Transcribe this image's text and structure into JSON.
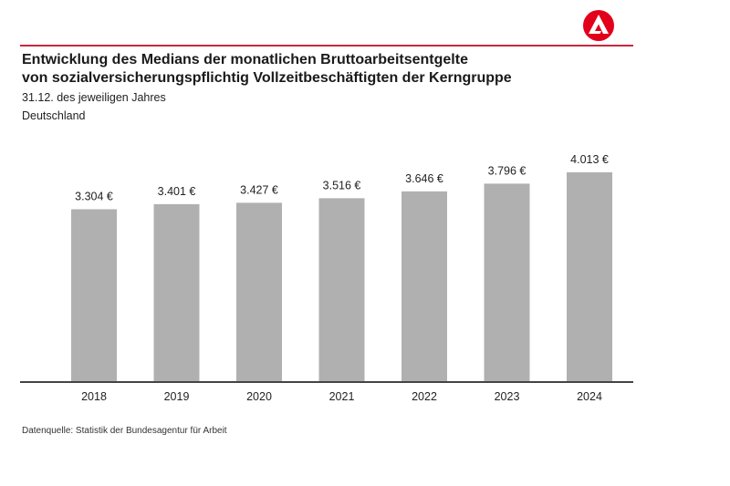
{
  "header": {
    "title_line1": "Entwicklung des Medians der monatlichen Bruttoarbeitsentgelte",
    "title_line2": "von sozialversicherungspflichtig Vollzeitbeschäftigten der Kerngruppe",
    "subtitle": "31.12. des jeweiligen Jahres",
    "region": "Deutschland",
    "logo": "bundesagentur-fuer-arbeit-logo"
  },
  "footer": {
    "source": "Datenquelle: Statistik der Bundesagentur für Arbeit"
  },
  "colors": {
    "accent": "#c8283c",
    "bar": "#b0b0b0",
    "axis": "#444444"
  },
  "chart_data": {
    "type": "bar",
    "title": "Entwicklung des Medians der monatlichen Bruttoarbeitsentgelte von sozialversicherungspflichtig Vollzeitbeschäftigten der Kerngruppe",
    "subtitle": "31.12. des jeweiligen Jahres – Deutschland",
    "xlabel": "",
    "ylabel": "",
    "categories": [
      "2018",
      "2019",
      "2020",
      "2021",
      "2022",
      "2023",
      "2024"
    ],
    "values": [
      3304,
      3401,
      3427,
      3516,
      3646,
      3796,
      4013
    ],
    "value_labels": [
      "3.304 €",
      "3.401 €",
      "3.427 €",
      "3.516 €",
      "3.646 €",
      "3.796 €",
      "4.013 €"
    ],
    "unit": "€",
    "ylim": [
      0,
      4013
    ],
    "grid": false,
    "legend": "none"
  }
}
